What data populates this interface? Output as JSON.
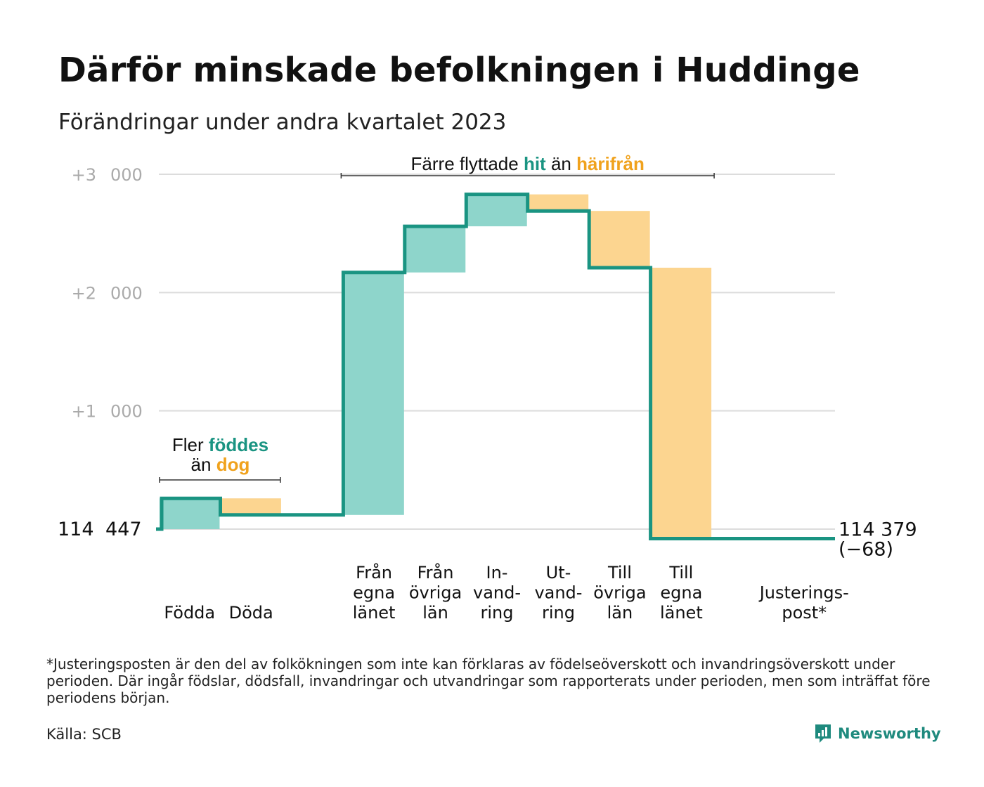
{
  "title": "Därför minskade befolkningen i Huddinge",
  "subtitle": "Förändringar under andra kvartalet 2023",
  "colors": {
    "teal_line": "#1a9482",
    "teal_fill": "#8ed5cb",
    "orange_fill": "#fcd590",
    "teal_text": "#1a9482",
    "orange_text": "#f0a21d",
    "grid": "#dcdcdc",
    "tick_text": "#aaaaaa"
  },
  "chart_data": {
    "type": "waterfall",
    "baseline": 114447,
    "end_value": 114379,
    "ylim": [
      0,
      3000
    ],
    "yticks": [
      {
        "value": 1000,
        "label_a": "+1",
        "label_b": "000"
      },
      {
        "value": 2000,
        "label_a": "+2",
        "label_b": "000"
      },
      {
        "value": 3000,
        "label_a": "+3",
        "label_b": "000"
      }
    ],
    "baseline_label_a": "114",
    "baseline_label_b": "447",
    "end_label_line1": "114 379",
    "end_label_line2": "(−68)",
    "steps": [
      {
        "label": [
          "Födda"
        ],
        "value": 260,
        "sign": "plus"
      },
      {
        "label": [
          "Döda"
        ],
        "value": -140,
        "sign": "minus"
      },
      {
        "label": [],
        "value": 0,
        "sign": "none"
      },
      {
        "label": [
          "Från",
          "egna",
          "länet"
        ],
        "value": 2050,
        "sign": "plus"
      },
      {
        "label": [
          "Från",
          "övriga",
          "län"
        ],
        "value": 390,
        "sign": "plus"
      },
      {
        "label": [
          "In-",
          "vand-",
          "ring"
        ],
        "value": 270,
        "sign": "plus"
      },
      {
        "label": [
          "Ut-",
          "vand-",
          "ring"
        ],
        "value": -140,
        "sign": "minus"
      },
      {
        "label": [
          "Till",
          "övriga",
          "län"
        ],
        "value": -480,
        "sign": "minus"
      },
      {
        "label": [
          "Till",
          "egna",
          "länet"
        ],
        "value": -2290,
        "sign": "minus"
      },
      {
        "label": [],
        "value": 0,
        "sign": "none"
      },
      {
        "label": [
          "Justerings-",
          "post*"
        ],
        "value": 0,
        "sign": "none"
      }
    ],
    "annotations": [
      {
        "id": "births",
        "line1": [
          {
            "text": "Fler ",
            "style": "plain"
          },
          {
            "text": "föddes",
            "style": "teal"
          }
        ],
        "line2": [
          {
            "text": "än ",
            "style": "plain"
          },
          {
            "text": "dog",
            "style": "orange"
          }
        ]
      },
      {
        "id": "migration",
        "line1": [
          {
            "text": "Färre flyttade ",
            "style": "plain"
          },
          {
            "text": "hit",
            "style": "teal"
          },
          {
            "text": " än ",
            "style": "plain"
          },
          {
            "text": "härifrån",
            "style": "orange"
          }
        ]
      }
    ]
  },
  "footnote": "*Justeringsposten är den del av folkökningen som inte kan förklaras av födelseöverskott och invandringsöverskott under perioden. Där ingår födslar, dödsfall, invandringar och utvandringar som rapporterats under perioden, men som inträffat före periodens början.",
  "source": "Källa: SCB",
  "brand": {
    "name": "Newsworthy",
    "icon": "newsworthy-logo-icon"
  }
}
